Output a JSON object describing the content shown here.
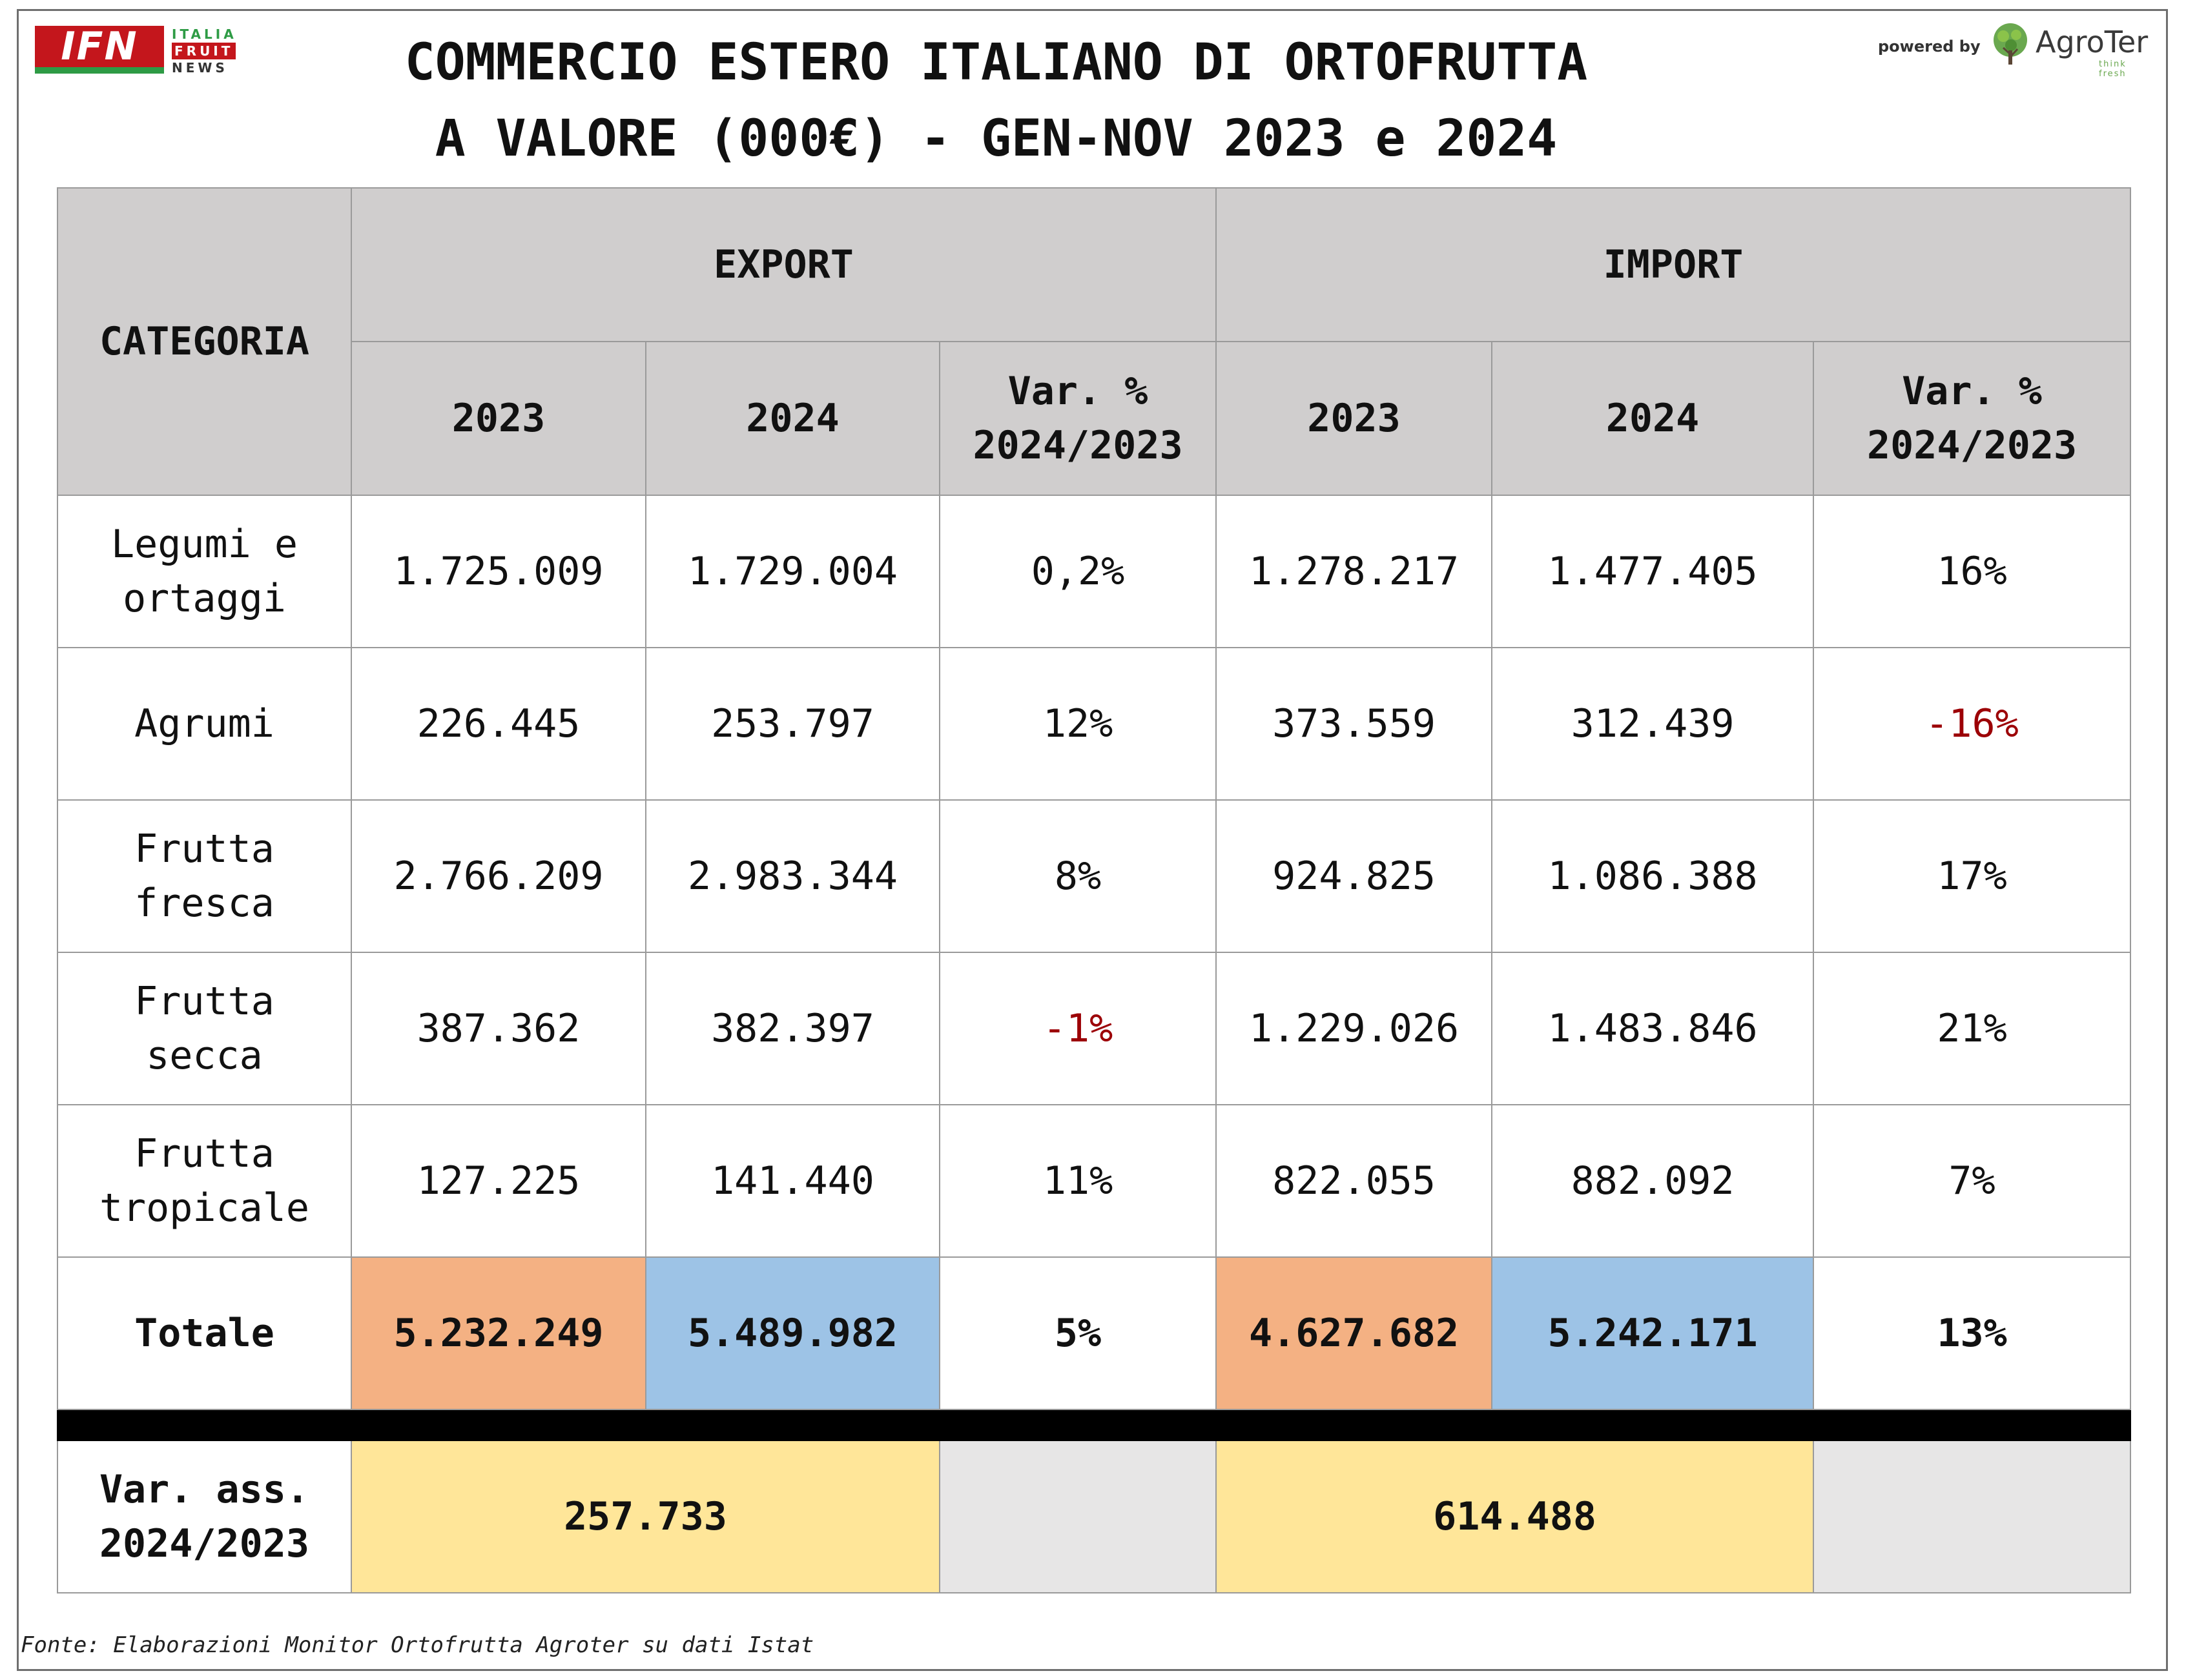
{
  "title": {
    "line1": "COMMERCIO ESTERO ITALIANO DI ORTOFRUTTA",
    "line2": "A VALORE (000€) - GEN-NOV 2023 e 2024"
  },
  "logo_left": {
    "letters": "IFN",
    "word1": "ITALIA",
    "word2": "FRUIT",
    "word3": "NEWS"
  },
  "logo_right": {
    "powered_by": "powered by",
    "name": "AgroTer",
    "tagline": "think fresh"
  },
  "table": {
    "header": {
      "categoria": "CATEGORIA",
      "export": "EXPORT",
      "import": "IMPORT",
      "exp_2023": "2023",
      "exp_2024": "2024",
      "exp_var_l1": "Var. %",
      "exp_var_l2": "2024/2023",
      "imp_2023": "2023",
      "imp_2024": "2024",
      "imp_var_l1": "Var. %",
      "imp_var_l2": "2024/2023"
    },
    "rows": [
      {
        "cat_l1": "Legumi e",
        "cat_l2": "ortaggi",
        "exp_2023": "1.725.009",
        "exp_2024": "1.729.004",
        "exp_var": "0,2%",
        "imp_2023": "1.278.217",
        "imp_2024": "1.477.405",
        "imp_var": "16%"
      },
      {
        "cat_l1": "Agrumi",
        "cat_l2": "",
        "exp_2023": "226.445",
        "exp_2024": "253.797",
        "exp_var": "12%",
        "imp_2023": "373.559",
        "imp_2024": "312.439",
        "imp_var": "-16%"
      },
      {
        "cat_l1": "Frutta",
        "cat_l2": "fresca",
        "exp_2023": "2.766.209",
        "exp_2024": "2.983.344",
        "exp_var": "8%",
        "imp_2023": "924.825",
        "imp_2024": "1.086.388",
        "imp_var": "17%"
      },
      {
        "cat_l1": "Frutta",
        "cat_l2": "secca",
        "exp_2023": "387.362",
        "exp_2024": "382.397",
        "exp_var": "-1%",
        "imp_2023": "1.229.026",
        "imp_2024": "1.483.846",
        "imp_var": "21%"
      },
      {
        "cat_l1": "Frutta",
        "cat_l2": "tropicale",
        "exp_2023": "127.225",
        "exp_2024": "141.440",
        "exp_var": "11%",
        "imp_2023": "822.055",
        "imp_2024": "882.092",
        "imp_var": "7%"
      }
    ],
    "total": {
      "label": "Totale",
      "exp_2023": "5.232.249",
      "exp_2024": "5.489.982",
      "exp_var": "5%",
      "imp_2023": "4.627.682",
      "imp_2024": "5.242.171",
      "imp_var": "13%"
    },
    "var_ass": {
      "label_l1": "Var. ass.",
      "label_l2": "2024/2023",
      "export": "257.733",
      "import": "614.488"
    }
  },
  "colors": {
    "header_bg": "#d0cece",
    "total_2023": "#f4b183",
    "total_2024": "#9dc3e6",
    "var_ass": "#ffe699",
    "empty_cell": "#e7e6e6",
    "negative": "#9c0006"
  },
  "footer": {
    "source": "Fonte: Elaborazioni Monitor Ortofrutta Agroter su dati Istat"
  }
}
